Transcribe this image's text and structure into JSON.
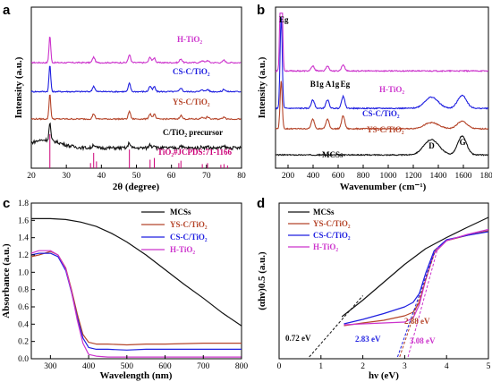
{
  "chart_data": [
    {
      "panel": "a",
      "type": "line",
      "xlabel": "2θ (degree)",
      "ylabel": "Intensity (a.u.)",
      "xlim": [
        20,
        80
      ],
      "xticks": [
        20,
        30,
        40,
        50,
        60,
        70,
        80
      ],
      "series": [
        {
          "name": "H-TiO₂",
          "color": "#cc33cc",
          "offset": 3.0,
          "peak_scale": 0.85,
          "noise": 0.02
        },
        {
          "name": "CS-C/TiO₂",
          "color": "#1f1fe0",
          "offset": 2.1,
          "peak_scale": 0.85,
          "noise": 0.02
        },
        {
          "name": "YS-C/TiO₂",
          "color": "#b5452a",
          "offset": 1.25,
          "peak_scale": 0.8,
          "noise": 0.02
        },
        {
          "name": "C/TiO₂ precursor",
          "color": "#111111",
          "offset": 0.35,
          "peak_scale": 0.55,
          "noise": 0.05,
          "hump": true
        }
      ],
      "peaks": [
        {
          "x": 25.3,
          "h": 1.0,
          "w": 0.35
        },
        {
          "x": 37.8,
          "h": 0.2,
          "w": 0.5
        },
        {
          "x": 48.0,
          "h": 0.3,
          "w": 0.45
        },
        {
          "x": 53.9,
          "h": 0.2,
          "w": 0.5
        },
        {
          "x": 55.1,
          "h": 0.18,
          "w": 0.45
        },
        {
          "x": 62.7,
          "h": 0.14,
          "w": 0.5
        },
        {
          "x": 68.8,
          "h": 0.08,
          "w": 0.5
        },
        {
          "x": 70.3,
          "h": 0.08,
          "w": 0.5
        },
        {
          "x": 75.0,
          "h": 0.09,
          "w": 0.5
        }
      ],
      "reference": {
        "name": "TiO₂#JCPDS:71-1166",
        "color": "#cc0077",
        "x": [
          25.3,
          36.9,
          37.8,
          38.6,
          48.0,
          53.9,
          55.1,
          62.1,
          62.7,
          68.8,
          70.3,
          74.1,
          75.0,
          76.0
        ],
        "h": [
          1.0,
          0.15,
          0.45,
          0.2,
          0.55,
          0.25,
          0.3,
          0.15,
          0.22,
          0.12,
          0.15,
          0.1,
          0.12,
          0.08
        ]
      }
    },
    {
      "panel": "b",
      "type": "line",
      "xlabel": "Wavenumber (cm⁻¹)",
      "ylabel": "Intensity (a.u.)",
      "xlim": [
        100,
        1800
      ],
      "xticks": [
        200,
        400,
        600,
        800,
        1000,
        1200,
        1400,
        1600,
        1800
      ],
      "series": [
        {
          "name": "H-TiO₂",
          "color": "#cc33cc",
          "offset": 2.65,
          "bands": [
            [
              145,
              4.2,
              12
            ],
            [
              398,
              0.14,
              18
            ],
            [
              515,
              0.14,
              18
            ],
            [
              640,
              0.18,
              18
            ]
          ]
        },
        {
          "name": "CS-C/TiO₂",
          "color": "#1f1fe0",
          "offset": 1.55,
          "bands": [
            [
              145,
              2.7,
              12
            ],
            [
              398,
              0.25,
              18
            ],
            [
              515,
              0.25,
              18
            ],
            [
              640,
              0.35,
              18
            ],
            [
              1345,
              0.33,
              75
            ],
            [
              1590,
              0.38,
              50
            ]
          ]
        },
        {
          "name": "YS-C/TiO₂",
          "color": "#b5452a",
          "offset": 0.95,
          "bands": [
            [
              145,
              1.4,
              12
            ],
            [
              398,
              0.28,
              18
            ],
            [
              515,
              0.28,
              18
            ],
            [
              640,
              0.38,
              18
            ],
            [
              1345,
              0.18,
              80
            ],
            [
              1590,
              0.22,
              55
            ]
          ]
        },
        {
          "name": "MCSs",
          "color": "#111111",
          "offset": 0.18,
          "bands": [
            [
              1345,
              0.45,
              85
            ],
            [
              1590,
              0.55,
              50
            ]
          ]
        }
      ],
      "annotations": [
        {
          "text": "Eg",
          "x": 150
        },
        {
          "text": "B1g",
          "x": 398
        },
        {
          "text": "A1g",
          "x": 520
        },
        {
          "text": "Eg",
          "x": 640
        },
        {
          "text": "D",
          "x": 1345
        },
        {
          "text": "G",
          "x": 1590
        }
      ]
    },
    {
      "panel": "c",
      "type": "line",
      "xlabel": "Wavelength (nm)",
      "ylabel": "Absorbance (a.u.)",
      "xlim": [
        250,
        800
      ],
      "ylim": [
        0.0,
        1.8
      ],
      "xticks": [
        300,
        400,
        500,
        600,
        700,
        800
      ],
      "yticks": [
        0.0,
        0.2,
        0.4,
        0.6,
        0.8,
        1.0,
        1.2,
        1.4,
        1.6,
        1.8
      ],
      "legend": "top-right",
      "series": [
        {
          "name": "MCSs",
          "color": "#111111",
          "x": [
            250,
            300,
            340,
            380,
            420,
            460,
            500,
            550,
            600,
            650,
            700,
            750,
            800
          ],
          "y": [
            1.62,
            1.62,
            1.61,
            1.58,
            1.53,
            1.45,
            1.35,
            1.2,
            1.03,
            0.86,
            0.7,
            0.53,
            0.38
          ]
        },
        {
          "name": "YS-C/TiO₂",
          "color": "#b5452a",
          "x": [
            250,
            270,
            300,
            320,
            340,
            355,
            370,
            385,
            400,
            420,
            450,
            500,
            550,
            600,
            700,
            800
          ],
          "y": [
            1.18,
            1.2,
            1.24,
            1.2,
            1.05,
            0.8,
            0.52,
            0.28,
            0.19,
            0.17,
            0.17,
            0.16,
            0.17,
            0.17,
            0.18,
            0.18
          ]
        },
        {
          "name": "CS-C/TiO₂",
          "color": "#1f1fe0",
          "x": [
            250,
            270,
            300,
            320,
            340,
            355,
            370,
            385,
            400,
            420,
            450,
            500,
            550,
            600,
            700,
            800
          ],
          "y": [
            1.2,
            1.22,
            1.22,
            1.18,
            1.02,
            0.77,
            0.48,
            0.24,
            0.13,
            0.11,
            0.11,
            0.1,
            0.11,
            0.11,
            0.11,
            0.11
          ]
        },
        {
          "name": "H-TiO₂",
          "color": "#cc33cc",
          "x": [
            250,
            270,
            300,
            320,
            340,
            355,
            370,
            385,
            400,
            420,
            450,
            500,
            550,
            600,
            700,
            800
          ],
          "y": [
            1.22,
            1.25,
            1.25,
            1.2,
            1.04,
            0.78,
            0.45,
            0.18,
            0.05,
            0.03,
            0.02,
            0.02,
            0.02,
            0.02,
            0.02,
            0.02
          ]
        }
      ]
    },
    {
      "panel": "d",
      "type": "line",
      "xlabel": "hν (eV)",
      "ylabel": "(αhν)0.5 (a.u.)",
      "xlim": [
        0,
        5
      ],
      "xticks": [
        0,
        1,
        2,
        3,
        4,
        5
      ],
      "legend": "top-left",
      "series": [
        {
          "name": "MCSs",
          "color": "#111111",
          "x": [
            1.5,
            2.0,
            2.5,
            3.0,
            3.5,
            4.0,
            4.5,
            5.0
          ],
          "y": [
            0.78,
            1.15,
            1.55,
            1.95,
            2.3,
            2.55,
            2.78,
            3.0
          ]
        },
        {
          "name": "YS-C/TiO₂",
          "color": "#b5452a",
          "x": [
            1.55,
            2.0,
            2.5,
            3.0,
            3.2,
            3.35,
            3.5,
            3.7,
            4.0,
            4.5,
            5.0
          ],
          "y": [
            0.58,
            0.64,
            0.7,
            0.8,
            0.88,
            1.1,
            1.6,
            2.2,
            2.48,
            2.6,
            2.7
          ]
        },
        {
          "name": "CS-C/TiO₂",
          "color": "#1f1fe0",
          "x": [
            1.55,
            2.0,
            2.5,
            3.0,
            3.2,
            3.35,
            3.5,
            3.7,
            4.0,
            4.5,
            5.0
          ],
          "y": [
            0.62,
            0.72,
            0.85,
            1.0,
            1.1,
            1.3,
            1.75,
            2.25,
            2.5,
            2.6,
            2.68
          ]
        },
        {
          "name": "H-TiO₂",
          "color": "#cc33cc",
          "x": [
            1.55,
            2.0,
            2.5,
            3.0,
            3.2,
            3.35,
            3.5,
            3.7,
            4.0,
            4.5,
            5.0
          ],
          "y": [
            0.6,
            0.62,
            0.64,
            0.66,
            0.75,
            1.05,
            1.6,
            2.2,
            2.48,
            2.62,
            2.73
          ]
        }
      ],
      "tangents": [
        {
          "color": "#111111",
          "x1": 0.72,
          "x2": 2.0
        },
        {
          "color": "#b5452a",
          "x1": 2.88,
          "x2": 3.75
        },
        {
          "color": "#1f1fe0",
          "x1": 2.83,
          "x2": 3.72
        },
        {
          "color": "#cc33cc",
          "x1": 3.08,
          "x2": 3.8
        }
      ],
      "bandgaps": [
        {
          "text": "0.72 eV",
          "color": "#111111"
        },
        {
          "text": "2.88 eV",
          "color": "#b5452a"
        },
        {
          "text": "2.83 eV",
          "color": "#1f1fe0"
        },
        {
          "text": "3.08 eV",
          "color": "#cc33cc"
        }
      ]
    }
  ],
  "panel_labels": [
    "a",
    "b",
    "c",
    "d"
  ]
}
